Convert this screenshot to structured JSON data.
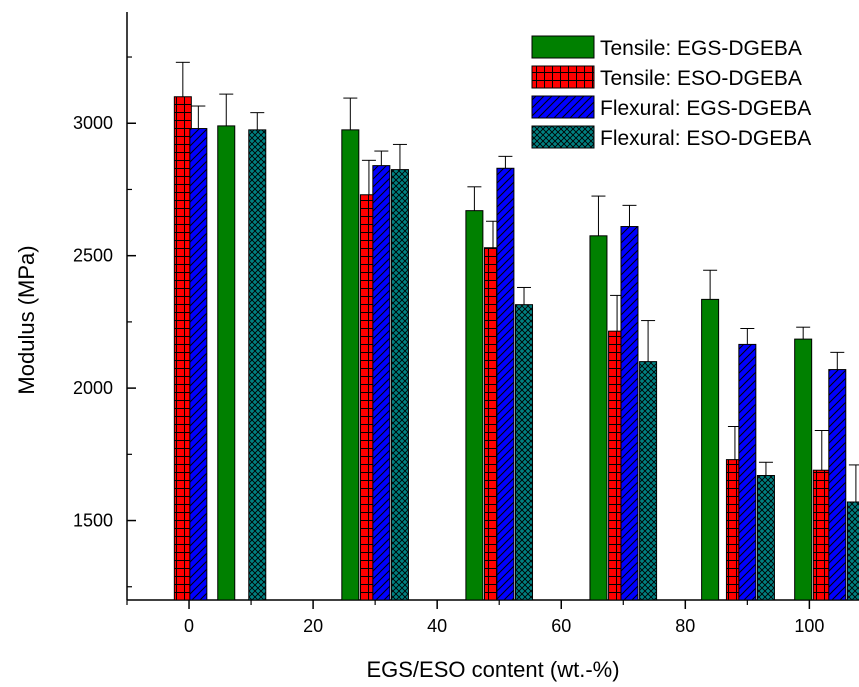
{
  "chart_data": {
    "type": "bar",
    "title": "",
    "xlabel": "EGS/ESO content (wt.-%)",
    "ylabel": "Modulus (MPa)",
    "xlim": [
      -10,
      108
    ],
    "ylim": [
      1200,
      3420
    ],
    "x_ticks": [
      0,
      20,
      40,
      60,
      80,
      100
    ],
    "y_ticks": [
      1500,
      2000,
      2500,
      3000
    ],
    "legend_position": "top-right",
    "series": [
      {
        "name": "Tensile:  EGS-DGEBA",
        "color": "#008000",
        "pattern": "solid",
        "x": [
          6,
          26,
          46,
          66,
          84,
          99
        ],
        "values": [
          2990,
          2975,
          2670,
          2575,
          2335,
          2185
        ],
        "errors": [
          120,
          120,
          90,
          150,
          110,
          45
        ]
      },
      {
        "name": "Tensile:  ESO-DGEBA",
        "color": "#ff0000",
        "pattern": "grid",
        "x": [
          -1,
          29,
          49,
          69,
          88,
          102
        ],
        "values": [
          3100,
          2730,
          2530,
          2215,
          1730,
          1690
        ],
        "errors": [
          130,
          130,
          100,
          135,
          125,
          150
        ]
      },
      {
        "name": "Flexural: EGS-DGEBA",
        "color": "#0000ff",
        "pattern": "hatch",
        "x": [
          1.5,
          31,
          51,
          71,
          90,
          104.5
        ],
        "values": [
          2980,
          2840,
          2830,
          2610,
          2165,
          2070
        ],
        "errors": [
          85,
          55,
          45,
          80,
          60,
          65
        ]
      },
      {
        "name": "Flexural: ESO-DGEBA",
        "color": "#008080",
        "pattern": "crosshatch",
        "x": [
          11,
          34,
          54,
          74,
          93,
          107.5
        ],
        "values": [
          2975,
          2825,
          2315,
          2100,
          1670,
          1570
        ],
        "errors": [
          65,
          95,
          65,
          155,
          50,
          140
        ]
      }
    ]
  }
}
